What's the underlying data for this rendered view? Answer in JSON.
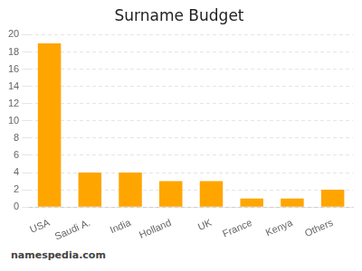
{
  "chart_data": {
    "type": "bar",
    "title": "Surname Budget",
    "categories": [
      "USA",
      "Saudi A.",
      "India",
      "Holland",
      "UK",
      "France",
      "Kenya",
      "Others"
    ],
    "values": [
      19,
      4,
      4,
      3,
      3,
      1,
      1,
      2
    ],
    "color": "#FFA500",
    "ylim": [
      0,
      20
    ],
    "yticks": [
      0,
      2,
      4,
      6,
      8,
      10,
      12,
      14,
      16,
      18,
      20
    ],
    "grid": true,
    "annotations": [
      "namespedia.com"
    ]
  }
}
